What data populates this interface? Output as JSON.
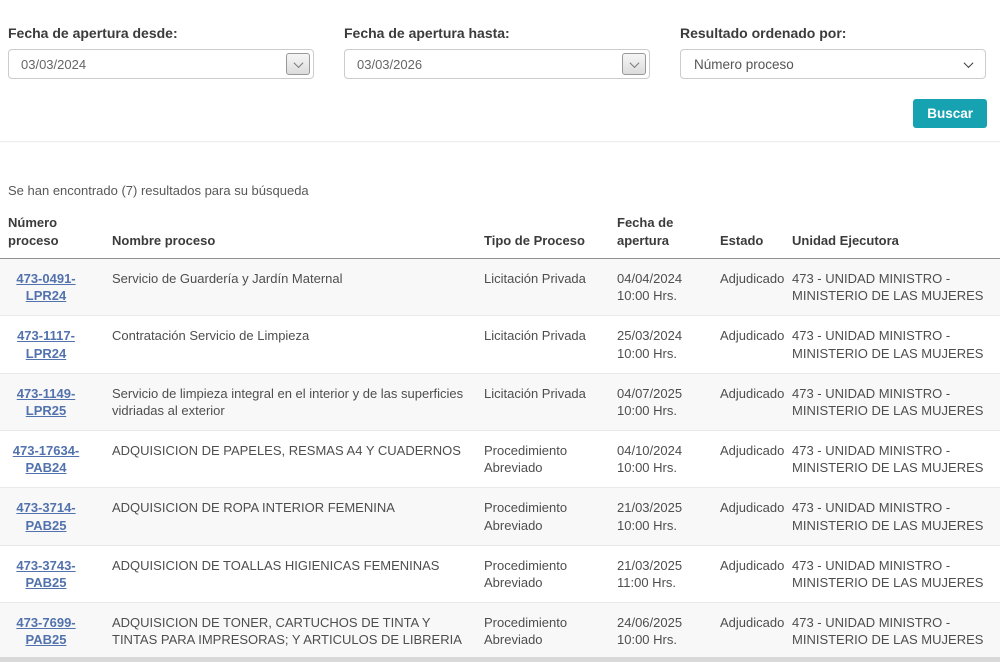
{
  "search_form": {
    "date_from": {
      "label": "Fecha de apertura desde:",
      "value": "03/03/2024"
    },
    "date_to": {
      "label": "Fecha de apertura hasta:",
      "value": "03/03/2026"
    },
    "order_by": {
      "label": "Resultado ordenado por:",
      "selected": "Número proceso"
    },
    "search_button_label": "Buscar"
  },
  "results": {
    "summary": "Se han encontrado (7) resultados para su búsqueda",
    "table": {
      "headers": [
        "Número proceso",
        "Nombre proceso",
        "Tipo de Proceso",
        "Fecha de apertura",
        "Estado",
        "Unidad Ejecutora"
      ],
      "rows": [
        {
          "number": "473-0491-LPR24",
          "name": "Servicio de Guardería y Jardín Maternal",
          "type": "Licitación Privada",
          "date": "04/04/2024",
          "time": "10:00 Hrs.",
          "status": "Adjudicado",
          "unit": "473 - UNIDAD MINISTRO - MINISTERIO DE LAS MUJERES"
        },
        {
          "number": "473-1117-LPR24",
          "name": "Contratación Servicio de Limpieza",
          "type": "Licitación Privada",
          "date": "25/03/2024",
          "time": "10:00 Hrs.",
          "status": "Adjudicado",
          "unit": "473 - UNIDAD MINISTRO - MINISTERIO DE LAS MUJERES"
        },
        {
          "number": "473-1149-LPR25",
          "name": "Servicio de limpieza integral en el interior y de las superficies vidriadas al exterior",
          "type": "Licitación Privada",
          "date": "04/07/2025",
          "time": "10:00 Hrs.",
          "status": "Adjudicado",
          "unit": "473 - UNIDAD MINISTRO - MINISTERIO DE LAS MUJERES"
        },
        {
          "number": "473-17634-PAB24",
          "name": "ADQUISICION DE PAPELES, RESMAS A4 Y CUADERNOS",
          "type": "Procedimiento Abreviado",
          "date": "04/10/2024",
          "time": "10:00 Hrs.",
          "status": "Adjudicado",
          "unit": "473 - UNIDAD MINISTRO - MINISTERIO DE LAS MUJERES"
        },
        {
          "number": "473-3714-PAB25",
          "name": "ADQUISICION DE ROPA INTERIOR FEMENINA",
          "type": "Procedimiento Abreviado",
          "date": "21/03/2025",
          "time": "10:00 Hrs.",
          "status": "Adjudicado",
          "unit": "473 - UNIDAD MINISTRO - MINISTERIO DE LAS MUJERES"
        },
        {
          "number": "473-3743-PAB25",
          "name": "ADQUISICION DE TOALLAS HIGIENICAS FEMENINAS",
          "type": "Procedimiento Abreviado",
          "date": "21/03/2025",
          "time": "11:00 Hrs.",
          "status": "Adjudicado",
          "unit": "473 - UNIDAD MINISTRO - MINISTERIO DE LAS MUJERES"
        },
        {
          "number": "473-7699-PAB25",
          "name": "ADQUISICION DE TONER, CARTUCHOS DE TINTA Y TINTAS PARA IMPRESORAS; Y ARTICULOS DE LIBRERIA",
          "type": "Procedimiento Abreviado",
          "date": "24/06/2025",
          "time": "10:00 Hrs.",
          "status": "Adjudicado",
          "unit": "473 - UNIDAD MINISTRO - MINISTERIO DE LAS MUJERES"
        }
      ]
    }
  },
  "icons": {
    "date_picker": "chevron-down",
    "order_select": "chevron-down"
  },
  "colors": {
    "accent": "#17a2b2",
    "link": "#5272ad"
  }
}
